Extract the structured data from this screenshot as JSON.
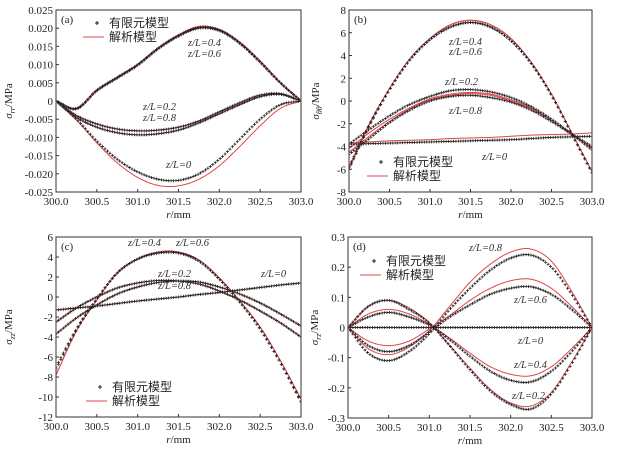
{
  "colors": {
    "fe": "#222222",
    "analytical": "#e0454a",
    "axis": "#333333"
  },
  "legend": {
    "fe": "有限元模型",
    "analytical": "解析模型"
  },
  "chart_data": [
    {
      "type": "line",
      "panel": "(a)",
      "ylabel": {
        "symbol": "σ",
        "sub": "rr",
        "unit": "/MPa"
      },
      "xlabel": {
        "symbol": "r",
        "unit": "/mm"
      },
      "xlim": [
        300,
        303
      ],
      "ylim": [
        -0.025,
        0.025
      ],
      "xticks": [
        "300.0",
        "300.5",
        "301.0",
        "301.5",
        "302.0",
        "302.5",
        "303.0"
      ],
      "yticks": [
        "-0.025",
        "-0.020",
        "-0.015",
        "-0.010",
        "-0.005",
        "0",
        "0.005",
        "0.010",
        "0.015",
        "0.020",
        "0.025"
      ],
      "legend_position": "top-left",
      "x": [
        300,
        300.25,
        300.5,
        300.75,
        301,
        301.25,
        301.5,
        301.75,
        302,
        302.25,
        302.5,
        302.75,
        303
      ],
      "annotations": [
        "z/L=0.4",
        "z/L=0.6",
        "z/L=0.2",
        "z/L=0.8",
        "z/L=0"
      ],
      "series": [
        {
          "model": "fe",
          "case": "z/L=0.4",
          "values": [
            0,
            -0.002,
            0.003,
            0.0065,
            0.01,
            0.0145,
            0.018,
            0.0202,
            0.0195,
            0.016,
            0.0108,
            0.005,
            0
          ]
        },
        {
          "model": "analytical",
          "case": "z/L=0.4",
          "values": [
            0,
            -0.002,
            0.003,
            0.0066,
            0.0101,
            0.0146,
            0.0182,
            0.0205,
            0.0197,
            0.0162,
            0.011,
            0.005,
            0
          ]
        },
        {
          "model": "fe",
          "case": "z/L=0.6",
          "values": [
            0,
            -0.0022,
            0.0028,
            0.0063,
            0.0098,
            0.0143,
            0.0178,
            0.02,
            0.0193,
            0.0158,
            0.0106,
            0.0049,
            0
          ]
        },
        {
          "model": "analytical",
          "case": "z/L=0.6",
          "values": [
            0,
            -0.0022,
            0.0028,
            0.0064,
            0.0099,
            0.0144,
            0.018,
            0.0203,
            0.0195,
            0.016,
            0.0108,
            0.0049,
            0
          ]
        },
        {
          "model": "fe",
          "case": "z/L=0.2",
          "values": [
            0,
            -0.004,
            -0.0063,
            -0.0077,
            -0.0082,
            -0.008,
            -0.0072,
            -0.0055,
            -0.003,
            -0.0005,
            0.0016,
            0.002,
            0
          ]
        },
        {
          "model": "analytical",
          "case": "z/L=0.2",
          "values": [
            0,
            -0.004,
            -0.0063,
            -0.0077,
            -0.0082,
            -0.008,
            -0.0072,
            -0.0055,
            -0.003,
            -0.0005,
            0.0016,
            0.002,
            0
          ]
        },
        {
          "model": "fe",
          "case": "z/L=0.8",
          "values": [
            0,
            -0.0045,
            -0.0072,
            -0.0087,
            -0.0093,
            -0.009,
            -0.008,
            -0.006,
            -0.0035,
            -0.001,
            0.0012,
            0.0018,
            0
          ]
        },
        {
          "model": "analytical",
          "case": "z/L=0.8",
          "values": [
            0,
            -0.0045,
            -0.0072,
            -0.0087,
            -0.0093,
            -0.009,
            -0.008,
            -0.006,
            -0.0035,
            -0.001,
            0.0012,
            0.0018,
            0
          ]
        },
        {
          "model": "fe",
          "case": "z/L=0",
          "values": [
            0,
            -0.005,
            -0.011,
            -0.016,
            -0.0195,
            -0.0215,
            -0.0218,
            -0.02,
            -0.016,
            -0.0105,
            -0.005,
            -0.001,
            0
          ]
        },
        {
          "model": "analytical",
          "case": "z/L=0",
          "values": [
            0,
            -0.0052,
            -0.0115,
            -0.017,
            -0.021,
            -0.0232,
            -0.0233,
            -0.0215,
            -0.0178,
            -0.0125,
            -0.0068,
            -0.002,
            0
          ]
        }
      ]
    },
    {
      "type": "line",
      "panel": "(b)",
      "ylabel": {
        "symbol": "σ",
        "sub": "θθ",
        "unit": "/MPa"
      },
      "xlabel": {
        "symbol": "r",
        "unit": "/mm"
      },
      "xlim": [
        300,
        303
      ],
      "ylim": [
        -8,
        8
      ],
      "xticks": [
        "300.0",
        "300.5",
        "301.0",
        "301.5",
        "302.0",
        "302.5",
        "303.0"
      ],
      "yticks": [
        "-8",
        "-6",
        "-4",
        "-2",
        "0",
        "2",
        "4",
        "6",
        "8"
      ],
      "legend_position": "bottom-left",
      "x": [
        300,
        300.25,
        300.5,
        300.75,
        301,
        301.25,
        301.5,
        301.75,
        302,
        302.25,
        302.5,
        302.75,
        303
      ],
      "annotations": [
        "z/L=0.4",
        "z/L=0.6",
        "z/L=0.2",
        "z/L=0.8",
        "z/L=0"
      ],
      "series": [
        {
          "model": "fe",
          "case": "z/L=0.4",
          "values": [
            -6.0,
            -2.2,
            1.0,
            3.6,
            5.4,
            6.5,
            6.9,
            6.5,
            5.3,
            3.3,
            0.5,
            -2.9,
            -6.3
          ]
        },
        {
          "model": "analytical",
          "case": "z/L=0.4",
          "values": [
            -6.0,
            -2.1,
            1.1,
            3.7,
            5.5,
            6.7,
            7.1,
            6.7,
            5.5,
            3.4,
            0.6,
            -2.8,
            -6.2
          ]
        },
        {
          "model": "fe",
          "case": "z/L=0.6",
          "values": [
            -5.8,
            -2.1,
            1.0,
            3.6,
            5.4,
            6.5,
            6.9,
            6.5,
            5.3,
            3.3,
            0.5,
            -2.9,
            -6.3
          ]
        },
        {
          "model": "analytical",
          "case": "z/L=0.6",
          "values": [
            -5.8,
            -2.0,
            1.1,
            3.7,
            5.5,
            6.7,
            7.1,
            6.7,
            5.5,
            3.4,
            0.6,
            -2.8,
            -6.2
          ]
        },
        {
          "model": "fe",
          "case": "z/L=0.2",
          "values": [
            -3.8,
            -2.5,
            -1.3,
            -0.3,
            0.4,
            0.9,
            1.0,
            0.8,
            0.3,
            -0.5,
            -1.6,
            -2.9,
            -4.3
          ]
        },
        {
          "model": "analytical",
          "case": "z/L=0.2",
          "values": [
            -4.2,
            -2.8,
            -1.6,
            -0.6,
            0.2,
            0.6,
            0.75,
            0.6,
            0.1,
            -0.6,
            -1.7,
            -2.9,
            -4.2
          ]
        },
        {
          "model": "fe",
          "case": "z/L=0.8",
          "values": [
            -4.7,
            -3.3,
            -1.9,
            -0.8,
            0.0,
            0.4,
            0.5,
            0.3,
            -0.1,
            -0.8,
            -1.8,
            -2.9,
            -4.0
          ]
        },
        {
          "model": "analytical",
          "case": "z/L=0.8",
          "values": [
            -4.5,
            -3.1,
            -1.8,
            -0.7,
            0.1,
            0.5,
            0.65,
            0.5,
            0.0,
            -0.7,
            -1.7,
            -2.9,
            -4.1
          ]
        },
        {
          "model": "fe",
          "case": "z/L=0",
          "values": [
            -3.8,
            -3.75,
            -3.7,
            -3.65,
            -3.6,
            -3.55,
            -3.5,
            -3.45,
            -3.4,
            -3.3,
            -3.2,
            -3.15,
            -3.1
          ]
        },
        {
          "model": "analytical",
          "case": "z/L=0",
          "values": [
            -3.7,
            -3.6,
            -3.5,
            -3.45,
            -3.4,
            -3.3,
            -3.25,
            -3.2,
            -3.1,
            -3.0,
            -2.95,
            -2.9,
            -2.8
          ]
        }
      ]
    },
    {
      "type": "line",
      "panel": "(c)",
      "ylabel": {
        "symbol": "σ",
        "sub": "zz",
        "unit": "/MPa"
      },
      "xlabel": {
        "symbol": "r",
        "unit": "/mm"
      },
      "xlim": [
        300,
        303
      ],
      "ylim": [
        -12,
        6
      ],
      "xticks": [
        "300.0",
        "300.5",
        "301.0",
        "301.5",
        "302.0",
        "302.5",
        "303.0"
      ],
      "yticks": [
        "-12",
        "-10",
        "-8",
        "-6",
        "-4",
        "-2",
        "0",
        "2",
        "4",
        "6"
      ],
      "legend_position": "bottom-left",
      "x": [
        300,
        300.25,
        300.5,
        300.75,
        301,
        301.25,
        301.5,
        301.75,
        302,
        302.25,
        302.5,
        302.75,
        303
      ],
      "annotations": [
        "z/L=0.4",
        "z/L=0.6",
        "z/L=0.2",
        "z/L=0.8",
        "z/L=0"
      ],
      "series": [
        {
          "model": "fe",
          "case": "z/L=0.4",
          "values": [
            -7.0,
            -3.2,
            -0.2,
            2.4,
            3.8,
            4.4,
            4.4,
            3.6,
            1.8,
            -0.5,
            -3.2,
            -6.6,
            -10.5
          ]
        },
        {
          "model": "analytical",
          "case": "z/L=0.4",
          "values": [
            -7.8,
            -3.4,
            -0.3,
            2.4,
            3.8,
            4.5,
            4.5,
            3.7,
            1.9,
            -0.4,
            -3.0,
            -6.4,
            -10.2
          ]
        },
        {
          "model": "fe",
          "case": "z/L=0.6",
          "values": [
            -7.2,
            -3.3,
            -0.2,
            2.4,
            3.8,
            4.4,
            4.4,
            3.6,
            1.8,
            -0.5,
            -3.2,
            -6.6,
            -10.4
          ]
        },
        {
          "model": "analytical",
          "case": "z/L=0.6",
          "values": [
            -7.8,
            -3.4,
            -0.3,
            2.4,
            3.8,
            4.5,
            4.5,
            3.7,
            1.9,
            -0.4,
            -3.0,
            -6.4,
            -10.2
          ]
        },
        {
          "model": "fe",
          "case": "z/L=0.2",
          "values": [
            -2.5,
            -1.1,
            0.0,
            0.9,
            1.4,
            1.65,
            1.6,
            1.3,
            0.6,
            -0.3,
            -1.4,
            -2.6,
            -4.0
          ]
        },
        {
          "model": "analytical",
          "case": "z/L=0.2",
          "values": [
            -2.5,
            -1.1,
            0.0,
            0.9,
            1.4,
            1.65,
            1.6,
            1.3,
            0.6,
            -0.3,
            -1.4,
            -2.6,
            -4.0
          ]
        },
        {
          "model": "fe",
          "case": "z/L=0.8",
          "values": [
            -3.7,
            -2.1,
            -0.8,
            0.3,
            1.0,
            1.45,
            1.6,
            1.5,
            1.0,
            0.3,
            -0.6,
            -1.7,
            -2.9
          ]
        },
        {
          "model": "analytical",
          "case": "z/L=0.8",
          "values": [
            -3.7,
            -2.1,
            -0.8,
            0.3,
            1.0,
            1.45,
            1.6,
            1.5,
            1.0,
            0.3,
            -0.6,
            -1.7,
            -2.9
          ]
        },
        {
          "model": "fe",
          "case": "z/L=0",
          "values": [
            -1.3,
            -1.1,
            -0.9,
            -0.65,
            -0.4,
            -0.2,
            0.0,
            0.25,
            0.45,
            0.7,
            0.95,
            1.2,
            1.4
          ]
        },
        {
          "model": "analytical",
          "case": "z/L=0",
          "values": [
            -1.3,
            -1.1,
            -0.9,
            -0.65,
            -0.4,
            -0.2,
            0.0,
            0.25,
            0.45,
            0.7,
            0.95,
            1.2,
            1.4
          ]
        }
      ]
    },
    {
      "type": "line",
      "panel": "(d)",
      "ylabel": {
        "symbol": "σ",
        "sub": "rz",
        "unit": "/MPa"
      },
      "xlabel": {
        "symbol": "r",
        "unit": "/mm"
      },
      "xlim": [
        300,
        303
      ],
      "ylim": [
        -0.3,
        0.3
      ],
      "xticks": [
        "300.0",
        "300.5",
        "301.0",
        "301.5",
        "302.0",
        "302.5",
        "303.0"
      ],
      "yticks": [
        "-0.3",
        "-0.2",
        "-0.1",
        "0",
        "0.1",
        "0.2",
        "0.3"
      ],
      "legend_position": "top-left",
      "x": [
        300,
        300.25,
        300.5,
        300.75,
        301,
        301.25,
        301.5,
        301.75,
        302,
        302.25,
        302.5,
        302.75,
        303
      ],
      "annotations": [
        "z/L=0.8",
        "z/L=0.6",
        "z/L=0",
        "z/L=0.4",
        "z/L=0.2"
      ],
      "series": [
        {
          "model": "fe",
          "case": "z/L=0.8",
          "values": [
            0,
            -0.085,
            -0.11,
            -0.08,
            -0.02,
            0.06,
            0.13,
            0.19,
            0.23,
            0.24,
            0.2,
            0.11,
            0
          ]
        },
        {
          "model": "analytical",
          "case": "z/L=0.8",
          "values": [
            0,
            -0.07,
            -0.09,
            -0.065,
            -0.01,
            0.07,
            0.15,
            0.21,
            0.25,
            0.26,
            0.22,
            0.12,
            0
          ]
        },
        {
          "model": "fe",
          "case": "z/L=0.6",
          "values": [
            0,
            -0.06,
            -0.08,
            -0.06,
            -0.015,
            0.035,
            0.075,
            0.11,
            0.13,
            0.135,
            0.11,
            0.06,
            0
          ]
        },
        {
          "model": "analytical",
          "case": "z/L=0.6",
          "values": [
            0,
            -0.045,
            -0.06,
            -0.045,
            -0.005,
            0.04,
            0.09,
            0.13,
            0.155,
            0.16,
            0.13,
            0.07,
            0
          ]
        },
        {
          "model": "fe",
          "case": "z/L=0",
          "values": [
            0,
            0,
            0,
            0,
            0,
            0,
            0,
            0,
            0,
            0,
            0,
            0,
            0
          ]
        },
        {
          "model": "analytical",
          "case": "z/L=0",
          "values": [
            0,
            0,
            0,
            0,
            0,
            0,
            0,
            0,
            0,
            0,
            0,
            0,
            0
          ]
        },
        {
          "model": "fe",
          "case": "z/L=0.4",
          "values": [
            0,
            0.035,
            0.05,
            0.035,
            0.008,
            -0.04,
            -0.095,
            -0.145,
            -0.175,
            -0.18,
            -0.145,
            -0.08,
            0
          ]
        },
        {
          "model": "analytical",
          "case": "z/L=0.4",
          "values": [
            0,
            0.045,
            0.06,
            0.045,
            0.01,
            -0.035,
            -0.085,
            -0.13,
            -0.155,
            -0.16,
            -0.13,
            -0.07,
            0
          ]
        },
        {
          "model": "fe",
          "case": "z/L=0.2",
          "values": [
            0,
            0.07,
            0.09,
            0.06,
            0.015,
            -0.06,
            -0.14,
            -0.21,
            -0.255,
            -0.27,
            -0.22,
            -0.12,
            0
          ]
        },
        {
          "model": "analytical",
          "case": "z/L=0.2",
          "values": [
            0,
            0.07,
            0.09,
            0.065,
            0.015,
            -0.06,
            -0.135,
            -0.205,
            -0.25,
            -0.26,
            -0.215,
            -0.115,
            0
          ]
        }
      ]
    }
  ]
}
